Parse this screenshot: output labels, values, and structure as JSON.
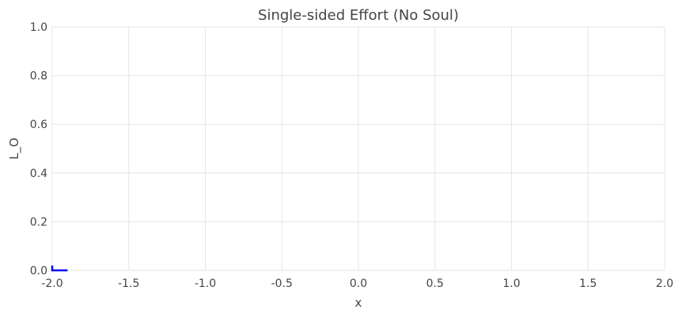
{
  "chart_data": {
    "type": "line",
    "title": "Single-sided Effort (No Soul)",
    "xlabel": "x",
    "ylabel": "L_O",
    "xlim": [
      -2.0,
      2.0
    ],
    "ylim": [
      0.0,
      1.0
    ],
    "x_ticks": [
      "-2.0",
      "-1.5",
      "-1.0",
      "-0.5",
      "0.0",
      "0.5",
      "1.0",
      "1.5",
      "2.0"
    ],
    "y_ticks": [
      "0.0",
      "0.2",
      "0.4",
      "0.6",
      "0.8",
      "1.0"
    ],
    "grid": true,
    "series": [
      {
        "color": "#0000ff",
        "x": [
          -2.0,
          -2.0,
          -1.99,
          -1.98,
          -1.97,
          -1.96,
          -1.95,
          -1.94,
          -1.93,
          -1.92,
          -1.91,
          -1.9
        ],
        "y": [
          0.02,
          0.0,
          0.0,
          0.0,
          0.0,
          0.0,
          0.0,
          0.0,
          0.0,
          0.0,
          0.0,
          0.0
        ]
      }
    ]
  }
}
